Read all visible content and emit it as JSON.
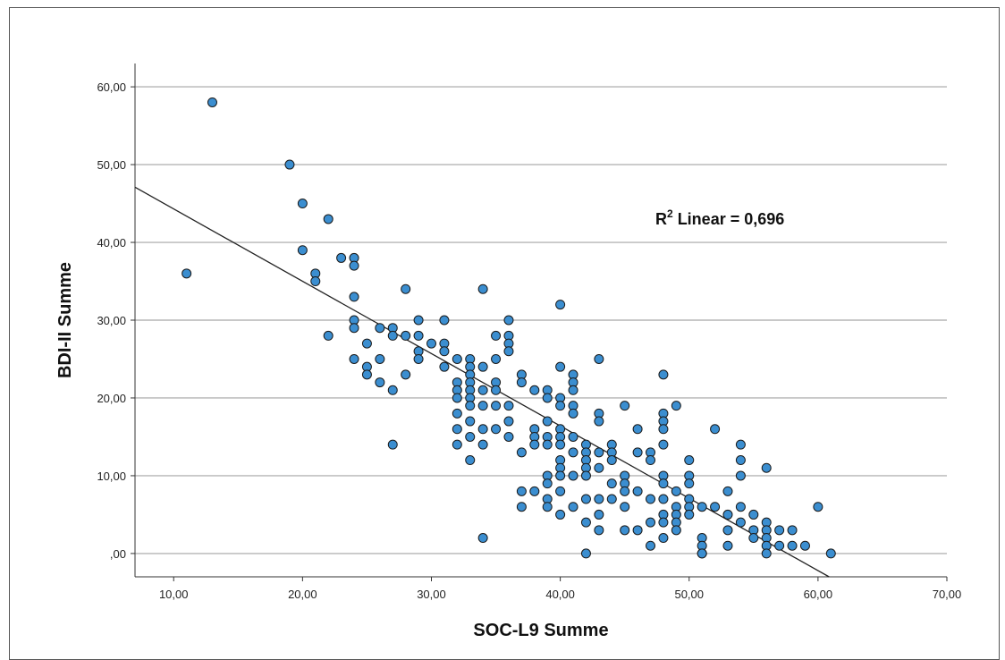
{
  "chart_data": {
    "type": "scatter",
    "xlabel": "SOC-L9 Summe",
    "ylabel": "BDI-II Summe",
    "xlim": [
      7,
      70
    ],
    "ylim": [
      -3,
      63
    ],
    "x_ticks": [
      10,
      20,
      30,
      40,
      50,
      60,
      70
    ],
    "x_tick_labels": [
      "10,00",
      "20,00",
      "30,00",
      "40,00",
      "50,00",
      "60,00",
      "70,00"
    ],
    "y_ticks": [
      0,
      10,
      20,
      30,
      40,
      50,
      60
    ],
    "y_tick_labels": [
      ",00",
      "10,00",
      "20,00",
      "30,00",
      "40,00",
      "50,00",
      "60,00"
    ],
    "grid": "horizontal",
    "marker_color": "#3b8ed0",
    "marker_edge_color": "#1a1a1a",
    "fit_line": {
      "label_prefix": "R",
      "label_sup": "2",
      "label_rest": " Linear = 0,696",
      "intercept": 53.6,
      "slope": -0.93,
      "color": "#222222"
    },
    "points": [
      [
        11,
        36
      ],
      [
        13,
        58
      ],
      [
        19,
        50
      ],
      [
        20,
        45
      ],
      [
        20,
        39
      ],
      [
        21,
        36
      ],
      [
        21,
        35
      ],
      [
        22,
        43
      ],
      [
        22,
        28
      ],
      [
        23,
        38
      ],
      [
        24,
        38
      ],
      [
        24,
        37
      ],
      [
        24,
        33
      ],
      [
        24,
        30
      ],
      [
        24,
        29
      ],
      [
        24,
        25
      ],
      [
        25,
        27
      ],
      [
        25,
        24
      ],
      [
        25,
        23
      ],
      [
        26,
        29
      ],
      [
        26,
        25
      ],
      [
        26,
        22
      ],
      [
        27,
        29
      ],
      [
        27,
        28
      ],
      [
        27,
        21
      ],
      [
        27,
        14
      ],
      [
        28,
        34
      ],
      [
        28,
        28
      ],
      [
        28,
        23
      ],
      [
        29,
        30
      ],
      [
        29,
        28
      ],
      [
        29,
        26
      ],
      [
        29,
        25
      ],
      [
        30,
        27
      ],
      [
        31,
        30
      ],
      [
        31,
        27
      ],
      [
        31,
        26
      ],
      [
        31,
        24
      ],
      [
        32,
        25
      ],
      [
        32,
        22
      ],
      [
        32,
        21
      ],
      [
        32,
        20
      ],
      [
        32,
        18
      ],
      [
        32,
        16
      ],
      [
        32,
        14
      ],
      [
        33,
        25
      ],
      [
        33,
        24
      ],
      [
        33,
        23
      ],
      [
        33,
        22
      ],
      [
        33,
        21
      ],
      [
        33,
        20
      ],
      [
        33,
        19
      ],
      [
        33,
        17
      ],
      [
        33,
        15
      ],
      [
        33,
        12
      ],
      [
        34,
        34
      ],
      [
        34,
        24
      ],
      [
        34,
        21
      ],
      [
        34,
        19
      ],
      [
        34,
        16
      ],
      [
        34,
        14
      ],
      [
        34,
        2
      ],
      [
        35,
        28
      ],
      [
        35,
        25
      ],
      [
        35,
        22
      ],
      [
        35,
        21
      ],
      [
        35,
        19
      ],
      [
        35,
        16
      ],
      [
        36,
        30
      ],
      [
        36,
        28
      ],
      [
        36,
        27
      ],
      [
        36,
        26
      ],
      [
        36,
        19
      ],
      [
        36,
        17
      ],
      [
        36,
        15
      ],
      [
        37,
        23
      ],
      [
        37,
        22
      ],
      [
        37,
        13
      ],
      [
        37,
        8
      ],
      [
        37,
        6
      ],
      [
        38,
        21
      ],
      [
        38,
        16
      ],
      [
        38,
        15
      ],
      [
        38,
        14
      ],
      [
        38,
        8
      ],
      [
        39,
        21
      ],
      [
        39,
        20
      ],
      [
        39,
        17
      ],
      [
        39,
        15
      ],
      [
        39,
        14
      ],
      [
        39,
        10
      ],
      [
        39,
        9
      ],
      [
        39,
        7
      ],
      [
        39,
        6
      ],
      [
        40,
        32
      ],
      [
        40,
        24
      ],
      [
        40,
        20
      ],
      [
        40,
        19
      ],
      [
        40,
        16
      ],
      [
        40,
        15
      ],
      [
        40,
        14
      ],
      [
        40,
        12
      ],
      [
        40,
        11
      ],
      [
        40,
        10
      ],
      [
        40,
        8
      ],
      [
        40,
        5
      ],
      [
        41,
        23
      ],
      [
        41,
        22
      ],
      [
        41,
        21
      ],
      [
        41,
        19
      ],
      [
        41,
        18
      ],
      [
        41,
        15
      ],
      [
        41,
        13
      ],
      [
        41,
        10
      ],
      [
        41,
        6
      ],
      [
        42,
        14
      ],
      [
        42,
        13
      ],
      [
        42,
        12
      ],
      [
        42,
        11
      ],
      [
        42,
        10
      ],
      [
        42,
        7
      ],
      [
        42,
        4
      ],
      [
        42,
        0
      ],
      [
        43,
        25
      ],
      [
        43,
        18
      ],
      [
        43,
        17
      ],
      [
        43,
        13
      ],
      [
        43,
        11
      ],
      [
        43,
        7
      ],
      [
        43,
        5
      ],
      [
        43,
        3
      ],
      [
        44,
        14
      ],
      [
        44,
        13
      ],
      [
        44,
        12
      ],
      [
        44,
        9
      ],
      [
        44,
        7
      ],
      [
        45,
        19
      ],
      [
        45,
        10
      ],
      [
        45,
        9
      ],
      [
        45,
        8
      ],
      [
        45,
        6
      ],
      [
        45,
        3
      ],
      [
        46,
        16
      ],
      [
        46,
        13
      ],
      [
        46,
        8
      ],
      [
        46,
        3
      ],
      [
        47,
        13
      ],
      [
        47,
        12
      ],
      [
        47,
        7
      ],
      [
        47,
        4
      ],
      [
        47,
        1
      ],
      [
        48,
        23
      ],
      [
        48,
        18
      ],
      [
        48,
        17
      ],
      [
        48,
        16
      ],
      [
        48,
        14
      ],
      [
        48,
        10
      ],
      [
        48,
        9
      ],
      [
        48,
        7
      ],
      [
        48,
        5
      ],
      [
        48,
        4
      ],
      [
        48,
        2
      ],
      [
        49,
        19
      ],
      [
        49,
        8
      ],
      [
        49,
        6
      ],
      [
        49,
        5
      ],
      [
        49,
        4
      ],
      [
        49,
        3
      ],
      [
        50,
        12
      ],
      [
        50,
        10
      ],
      [
        50,
        9
      ],
      [
        50,
        7
      ],
      [
        50,
        6
      ],
      [
        50,
        5
      ],
      [
        51,
        6
      ],
      [
        51,
        2
      ],
      [
        51,
        1
      ],
      [
        51,
        0
      ],
      [
        51,
        0
      ],
      [
        52,
        16
      ],
      [
        52,
        6
      ],
      [
        53,
        8
      ],
      [
        53,
        5
      ],
      [
        53,
        3
      ],
      [
        53,
        1
      ],
      [
        54,
        14
      ],
      [
        54,
        12
      ],
      [
        54,
        10
      ],
      [
        54,
        6
      ],
      [
        54,
        4
      ],
      [
        55,
        5
      ],
      [
        55,
        3
      ],
      [
        55,
        2
      ],
      [
        56,
        11
      ],
      [
        56,
        4
      ],
      [
        56,
        3
      ],
      [
        56,
        2
      ],
      [
        56,
        1
      ],
      [
        56,
        0
      ],
      [
        57,
        3
      ],
      [
        57,
        1
      ],
      [
        58,
        3
      ],
      [
        58,
        1
      ],
      [
        59,
        1
      ],
      [
        60,
        6
      ],
      [
        61,
        0
      ]
    ]
  }
}
